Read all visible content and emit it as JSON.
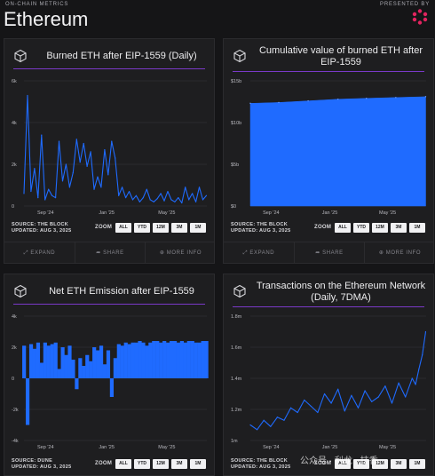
{
  "header": {
    "eyebrow": "ON-CHAIN METRICS",
    "title": "Ethereum",
    "presented_by": "PRESENTED BY",
    "logo_color": "#e2245f"
  },
  "footer_actions": {
    "expand": "EXPAND",
    "share": "SHARE",
    "more_info": "MORE INFO"
  },
  "watermark": "公众号 · 利龙 · 技香",
  "zoom": {
    "label": "ZOOM",
    "buttons": [
      "ALL",
      "YTD",
      "12M",
      "3M",
      "1M"
    ]
  },
  "accent_color": "#1f6bff",
  "rule_color": "#7a39c8",
  "cards": [
    {
      "title_line1": "Burned ETH after EIP-1559 (Daily)",
      "title_line2": "",
      "source": "SOURCE: THE BLOCK",
      "updated": "UPDATED: AUG 3, 2025",
      "icon": "cube-icon"
    },
    {
      "title_line1": "Cumulative value of burned ETH after",
      "title_line2": "EIP-1559",
      "source": "SOURCE: THE BLOCK",
      "updated": "UPDATED: AUG 3, 2025",
      "icon": "cube-icon"
    },
    {
      "title_line1": "Net ETH Emission after EIP-1559",
      "title_line2": "",
      "source": "SOURCE: DUNE",
      "updated": "UPDATED: AUG 3, 2025",
      "icon": "cube-icon"
    },
    {
      "title_line1": "Transactions on the Ethereum Network",
      "title_line2": "(Daily, 7DMA)",
      "source": "SOURCE: THE BLOCK",
      "updated": "UPDATED: AUG 3, 2025",
      "icon": "cube-icon"
    }
  ],
  "chart_data": [
    {
      "type": "line",
      "title": "Burned ETH after EIP-1559 (Daily)",
      "x_ticks": [
        "Sep '24",
        "Jan '25",
        "May '25"
      ],
      "y_ticks": [
        "0",
        "2k",
        "4k",
        "6k"
      ],
      "ylim": [
        0,
        6000
      ],
      "x_start": "2024-08-03",
      "x_end": "2025-08-03",
      "series": [
        {
          "color": "#1f6bff",
          "x": [
            "2024-08-03",
            "2024-08-10",
            "2024-08-17",
            "2024-08-24",
            "2024-08-31",
            "2024-09-07",
            "2024-09-14",
            "2024-09-21",
            "2024-09-28",
            "2024-10-05",
            "2024-10-12",
            "2024-10-19",
            "2024-10-26",
            "2024-11-02",
            "2024-11-09",
            "2024-11-16",
            "2024-11-23",
            "2024-11-30",
            "2024-12-07",
            "2024-12-14",
            "2024-12-21",
            "2024-12-28",
            "2025-01-04",
            "2025-01-11",
            "2025-01-18",
            "2025-01-25",
            "2025-02-01",
            "2025-02-08",
            "2025-02-15",
            "2025-02-22",
            "2025-03-01",
            "2025-03-08",
            "2025-03-15",
            "2025-03-22",
            "2025-03-29",
            "2025-04-05",
            "2025-04-12",
            "2025-04-19",
            "2025-04-26",
            "2025-05-03",
            "2025-05-10",
            "2025-05-17",
            "2025-05-24",
            "2025-05-31",
            "2025-06-07",
            "2025-06-14",
            "2025-06-21",
            "2025-06-28",
            "2025-07-05",
            "2025-07-12",
            "2025-07-19",
            "2025-07-26",
            "2025-08-02"
          ],
          "values": [
            600,
            5300,
            700,
            1800,
            400,
            3400,
            300,
            800,
            500,
            400,
            3100,
            1200,
            2000,
            900,
            1600,
            3200,
            2100,
            3000,
            1900,
            2600,
            800,
            1400,
            900,
            2700,
            1500,
            3100,
            2300,
            500,
            900,
            400,
            700,
            300,
            500,
            200,
            400,
            800,
            300,
            200,
            350,
            600,
            250,
            700,
            300,
            200,
            400,
            150,
            900,
            300,
            600,
            200,
            900,
            300,
            500
          ]
        }
      ]
    },
    {
      "type": "area",
      "title": "Cumulative value of burned ETH after EIP-1559",
      "x_ticks": [
        "Sep '24",
        "Jan '25",
        "May '25"
      ],
      "y_ticks": [
        "$0",
        "$5b",
        "$10b",
        "$15b"
      ],
      "ylim": [
        0,
        15
      ],
      "y_unit": "$b",
      "x_start": "2024-08-03",
      "x_end": "2025-08-03",
      "series": [
        {
          "color": "#1f6bff",
          "x": [
            "2024-08-03",
            "2024-10-01",
            "2024-12-01",
            "2025-02-01",
            "2025-04-01",
            "2025-06-01",
            "2025-08-02"
          ],
          "values": [
            12.3,
            12.4,
            12.6,
            12.8,
            12.9,
            13.0,
            13.1
          ]
        }
      ]
    },
    {
      "type": "bar",
      "title": "Net ETH Emission after EIP-1559",
      "x_ticks": [
        "Sep '24",
        "Jan '25",
        "May '25"
      ],
      "y_ticks": [
        "-4k",
        "-2k",
        "0",
        "2k",
        "4k"
      ],
      "ylim": [
        -4000,
        4000
      ],
      "x_start": "2024-08-03",
      "x_end": "2025-08-03",
      "series": [
        {
          "color": "#1f6bff",
          "x": [
            "2024-08-03",
            "2024-08-10",
            "2024-08-17",
            "2024-08-24",
            "2024-08-31",
            "2024-09-07",
            "2024-09-14",
            "2024-09-21",
            "2024-09-28",
            "2024-10-05",
            "2024-10-12",
            "2024-10-19",
            "2024-10-26",
            "2024-11-02",
            "2024-11-09",
            "2024-11-16",
            "2024-11-23",
            "2024-11-30",
            "2024-12-07",
            "2024-12-14",
            "2024-12-21",
            "2024-12-28",
            "2025-01-04",
            "2025-01-11",
            "2025-01-18",
            "2025-01-25",
            "2025-02-01",
            "2025-02-08",
            "2025-02-15",
            "2025-02-22",
            "2025-03-01",
            "2025-03-08",
            "2025-03-15",
            "2025-03-22",
            "2025-03-29",
            "2025-04-05",
            "2025-04-12",
            "2025-04-19",
            "2025-04-26",
            "2025-05-03",
            "2025-05-10",
            "2025-05-17",
            "2025-05-24",
            "2025-05-31",
            "2025-06-07",
            "2025-06-14",
            "2025-06-21",
            "2025-06-28",
            "2025-07-05",
            "2025-07-12",
            "2025-07-19",
            "2025-07-26",
            "2025-08-02"
          ],
          "values": [
            2100,
            -3000,
            2200,
            1900,
            2300,
            1000,
            2300,
            2100,
            2200,
            2300,
            600,
            2000,
            1500,
            2100,
            1200,
            -700,
            1300,
            800,
            1500,
            1100,
            2000,
            1800,
            2100,
            900,
            1800,
            -1200,
            1300,
            2200,
            2100,
            2300,
            2200,
            2300,
            2300,
            2400,
            2300,
            2100,
            2300,
            2400,
            2400,
            2300,
            2400,
            2300,
            2400,
            2400,
            2300,
            2400,
            2300,
            2400,
            2400,
            2300,
            2300,
            2400,
            2400
          ]
        }
      ]
    },
    {
      "type": "line",
      "title": "Transactions on the Ethereum Network (Daily, 7DMA)",
      "x_ticks": [
        "Sep '24",
        "Jan '25",
        "May '25"
      ],
      "y_ticks": [
        "1m",
        "1.2m",
        "1.4m",
        "1.6m",
        "1.8m"
      ],
      "ylim": [
        1.0,
        1.8
      ],
      "y_unit": "m",
      "x_start": "2024-08-03",
      "x_end": "2025-08-03",
      "series": [
        {
          "color": "#1f6bff",
          "x": [
            "2024-08-03",
            "2024-08-17",
            "2024-08-31",
            "2024-09-14",
            "2024-09-28",
            "2024-10-12",
            "2024-10-26",
            "2024-11-09",
            "2024-11-23",
            "2024-12-07",
            "2024-12-21",
            "2025-01-04",
            "2025-01-18",
            "2025-02-01",
            "2025-02-15",
            "2025-03-01",
            "2025-03-15",
            "2025-03-29",
            "2025-04-12",
            "2025-04-26",
            "2025-05-10",
            "2025-05-24",
            "2025-06-07",
            "2025-06-21",
            "2025-07-05",
            "2025-07-12",
            "2025-07-19",
            "2025-07-26",
            "2025-08-02"
          ],
          "values": [
            1.1,
            1.07,
            1.13,
            1.09,
            1.15,
            1.13,
            1.21,
            1.18,
            1.26,
            1.22,
            1.18,
            1.3,
            1.24,
            1.33,
            1.19,
            1.29,
            1.21,
            1.32,
            1.25,
            1.28,
            1.35,
            1.24,
            1.37,
            1.28,
            1.4,
            1.36,
            1.46,
            1.55,
            1.7
          ]
        }
      ]
    }
  ]
}
